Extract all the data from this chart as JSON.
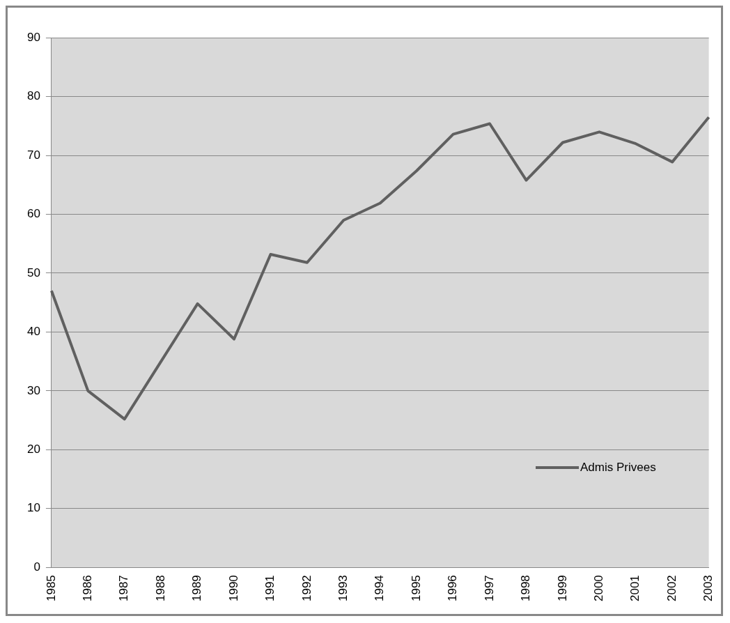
{
  "chart_data": {
    "type": "line",
    "categories": [
      "1985",
      "1986",
      "1987",
      "1988",
      "1989",
      "1990",
      "1991",
      "1992",
      "1993",
      "1994",
      "1995",
      "1996",
      "1997",
      "1998",
      "1999",
      "2000",
      "2001",
      "2002",
      "2003"
    ],
    "series": [
      {
        "name": "Admis Privees",
        "color": "#606060",
        "values": [
          47,
          30,
          25.2,
          35,
          44.8,
          38.8,
          53.2,
          51.8,
          59,
          61.9,
          67.4,
          73.6,
          75.4,
          65.8,
          72.2,
          74,
          72,
          68.9,
          76.5
        ]
      }
    ],
    "ylim": [
      0,
      90
    ],
    "yticks": [
      0,
      10,
      20,
      30,
      40,
      50,
      60,
      70,
      80,
      90
    ],
    "grid": "y",
    "legend": "bottom right",
    "marker": "none",
    "line_style": "solid"
  }
}
